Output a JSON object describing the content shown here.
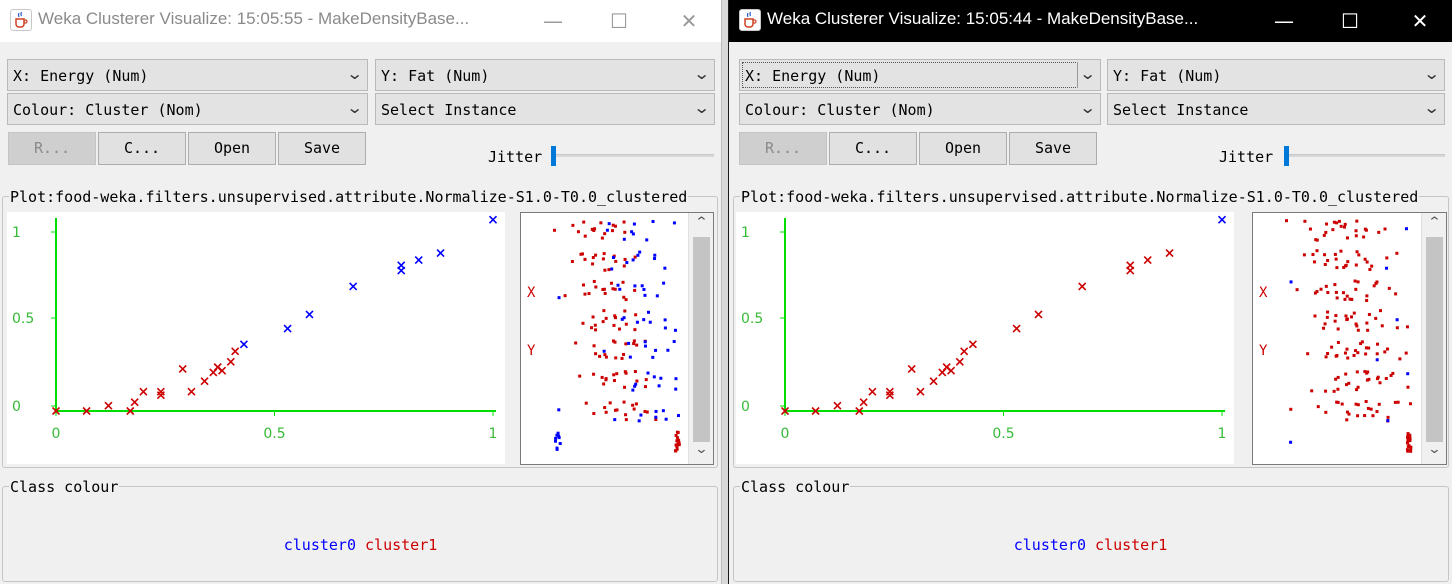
{
  "colors": {
    "cluster0": "#0000ff",
    "cluster1": "#cc0000",
    "axis": "#00dd00",
    "tick_label": "#37ba37"
  },
  "icons": {
    "app": "java-coffee-cup-icon",
    "minimize": "minimize-icon",
    "maximize": "maximize-icon",
    "close": "close-icon"
  },
  "windows": [
    {
      "title": "Weka Clusterer Visualize: 15:05:55 - MakeDensityBase...",
      "x_combo": "X: Energy (Num)",
      "y_combo": "Y: Fat (Num)",
      "colour_combo": "Colour: Cluster (Nom)",
      "instance_combo": "Select Instance",
      "buttons": {
        "reset": "R...",
        "clear": "C...",
        "open": "Open",
        "save": "Save"
      },
      "jitter_label": "Jitter",
      "plot_title": "Plot:food-weka.filters.unsupervised.attribute.Normalize-S1.0-T0.0_clustered",
      "matrix_labels": {
        "x": "X",
        "y": "Y"
      },
      "class_colour_title": "Class colour",
      "legend": [
        "cluster0",
        "cluster1"
      ]
    },
    {
      "title": "Weka Clusterer Visualize: 15:05:44 - MakeDensityBase...",
      "x_combo": "X: Energy (Num)",
      "y_combo": "Y: Fat (Num)",
      "colour_combo": "Colour: Cluster (Nom)",
      "instance_combo": "Select Instance",
      "buttons": {
        "reset": "R...",
        "clear": "C...",
        "open": "Open",
        "save": "Save"
      },
      "jitter_label": "Jitter",
      "plot_title": "Plot:food-weka.filters.unsupervised.attribute.Normalize-S1.0-T0.0_clustered",
      "matrix_labels": {
        "x": "X",
        "y": "Y"
      },
      "class_colour_title": "Class colour",
      "legend": [
        "cluster0",
        "cluster1"
      ]
    }
  ],
  "chart_data": [
    {
      "type": "scatter",
      "x_ticks": [
        "0",
        "0.5",
        "1"
      ],
      "y_ticks": [
        "0",
        "0.5",
        "1"
      ],
      "xlim": [
        0,
        1
      ],
      "ylim": [
        0,
        1.1
      ],
      "points": [
        {
          "x": 0.0,
          "y": 0.0,
          "c": 1
        },
        {
          "x": 0.07,
          "y": 0.0,
          "c": 1
        },
        {
          "x": 0.12,
          "y": 0.03,
          "c": 1
        },
        {
          "x": 0.17,
          "y": 0.0,
          "c": 1
        },
        {
          "x": 0.18,
          "y": 0.05,
          "c": 1
        },
        {
          "x": 0.2,
          "y": 0.11,
          "c": 1
        },
        {
          "x": 0.24,
          "y": 0.09,
          "c": 1
        },
        {
          "x": 0.24,
          "y": 0.11,
          "c": 1
        },
        {
          "x": 0.29,
          "y": 0.24,
          "c": 1
        },
        {
          "x": 0.31,
          "y": 0.11,
          "c": 1
        },
        {
          "x": 0.34,
          "y": 0.17,
          "c": 1
        },
        {
          "x": 0.36,
          "y": 0.22,
          "c": 1
        },
        {
          "x": 0.37,
          "y": 0.25,
          "c": 1
        },
        {
          "x": 0.38,
          "y": 0.23,
          "c": 1
        },
        {
          "x": 0.4,
          "y": 0.28,
          "c": 1
        },
        {
          "x": 0.41,
          "y": 0.34,
          "c": 1
        },
        {
          "x": 0.43,
          "y": 0.38,
          "c": 0
        },
        {
          "x": 0.53,
          "y": 0.47,
          "c": 0
        },
        {
          "x": 0.58,
          "y": 0.55,
          "c": 0
        },
        {
          "x": 0.68,
          "y": 0.71,
          "c": 0
        },
        {
          "x": 0.79,
          "y": 0.8,
          "c": 0
        },
        {
          "x": 0.79,
          "y": 0.83,
          "c": 0
        },
        {
          "x": 0.83,
          "y": 0.86,
          "c": 0
        },
        {
          "x": 0.88,
          "y": 0.9,
          "c": 0
        },
        {
          "x": 1.0,
          "y": 1.09,
          "c": 0
        }
      ]
    },
    {
      "type": "scatter",
      "x_ticks": [
        "0",
        "0.5",
        "1"
      ],
      "y_ticks": [
        "0",
        "0.5",
        "1"
      ],
      "xlim": [
        0,
        1
      ],
      "ylim": [
        0,
        1.1
      ],
      "points": [
        {
          "x": 0.0,
          "y": 0.0,
          "c": 1
        },
        {
          "x": 0.07,
          "y": 0.0,
          "c": 1
        },
        {
          "x": 0.12,
          "y": 0.03,
          "c": 1
        },
        {
          "x": 0.17,
          "y": 0.0,
          "c": 1
        },
        {
          "x": 0.18,
          "y": 0.05,
          "c": 1
        },
        {
          "x": 0.2,
          "y": 0.11,
          "c": 1
        },
        {
          "x": 0.24,
          "y": 0.09,
          "c": 1
        },
        {
          "x": 0.24,
          "y": 0.11,
          "c": 1
        },
        {
          "x": 0.29,
          "y": 0.24,
          "c": 1
        },
        {
          "x": 0.31,
          "y": 0.11,
          "c": 1
        },
        {
          "x": 0.34,
          "y": 0.17,
          "c": 1
        },
        {
          "x": 0.36,
          "y": 0.22,
          "c": 1
        },
        {
          "x": 0.37,
          "y": 0.25,
          "c": 1
        },
        {
          "x": 0.38,
          "y": 0.23,
          "c": 1
        },
        {
          "x": 0.4,
          "y": 0.28,
          "c": 1
        },
        {
          "x": 0.41,
          "y": 0.34,
          "c": 1
        },
        {
          "x": 0.43,
          "y": 0.38,
          "c": 1
        },
        {
          "x": 0.53,
          "y": 0.47,
          "c": 1
        },
        {
          "x": 0.58,
          "y": 0.55,
          "c": 1
        },
        {
          "x": 0.68,
          "y": 0.71,
          "c": 1
        },
        {
          "x": 0.79,
          "y": 0.8,
          "c": 1
        },
        {
          "x": 0.79,
          "y": 0.83,
          "c": 1
        },
        {
          "x": 0.83,
          "y": 0.86,
          "c": 1
        },
        {
          "x": 0.88,
          "y": 0.9,
          "c": 1
        },
        {
          "x": 1.0,
          "y": 1.09,
          "c": 0
        }
      ]
    }
  ]
}
